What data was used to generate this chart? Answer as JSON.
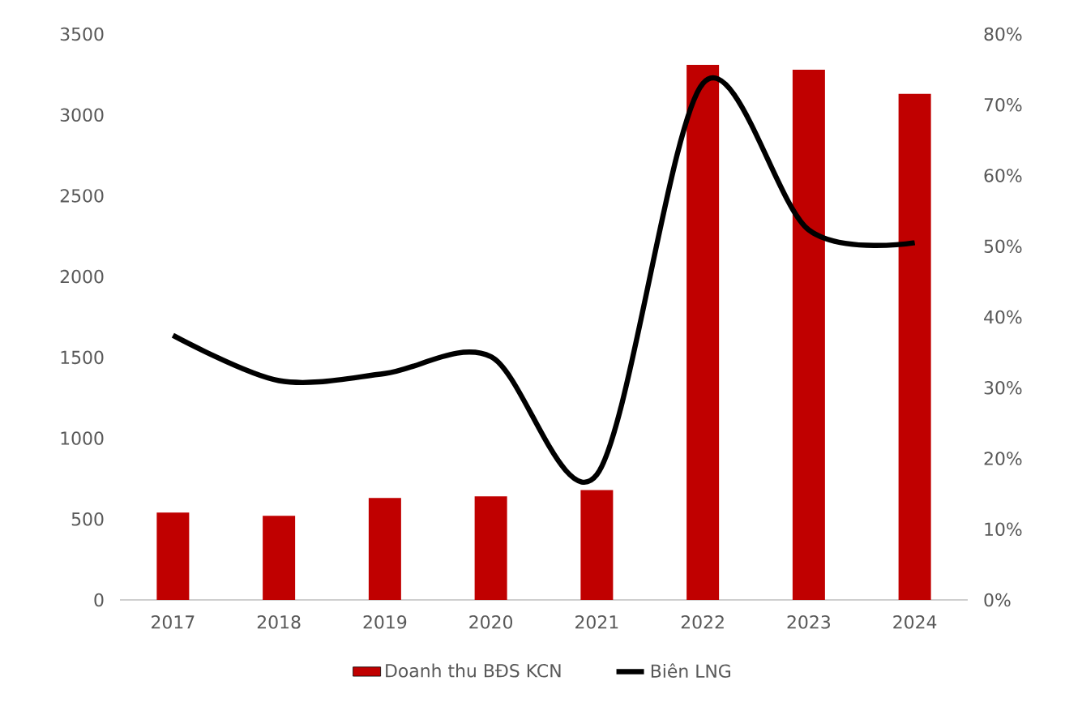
{
  "chart_data": {
    "type": "bar",
    "categories": [
      "2017",
      "2018",
      "2019",
      "2020",
      "2021",
      "2022",
      "2023",
      "2024"
    ],
    "series": [
      {
        "name": "Doanh thu BĐS KCN",
        "color": "#c00000",
        "values": [
          540,
          520,
          630,
          640,
          680,
          3310,
          3280,
          3130
        ]
      },
      {
        "name": "Biên LNG",
        "type": "line",
        "axis": "y2",
        "color": "#000000",
        "values": [
          37.4,
          31,
          32,
          34.4,
          17.7,
          73,
          52.3,
          50.5
        ]
      }
    ],
    "ylim": [
      0,
      3500
    ],
    "yticks": [
      0,
      500,
      1000,
      1500,
      2000,
      2500,
      3000,
      3500
    ],
    "y2lim": [
      0,
      80
    ],
    "y2ticks": [
      {
        "value": 0,
        "label": "0%"
      },
      {
        "value": 10,
        "label": "10%"
      },
      {
        "value": 20,
        "label": "20%"
      },
      {
        "value": 30,
        "label": "30%"
      },
      {
        "value": 40,
        "label": "40%"
      },
      {
        "value": 50,
        "label": "50%"
      },
      {
        "value": 60,
        "label": "60%"
      },
      {
        "value": 70,
        "label": "70%"
      },
      {
        "value": 80,
        "label": "80%"
      }
    ],
    "legend": "bottom"
  }
}
